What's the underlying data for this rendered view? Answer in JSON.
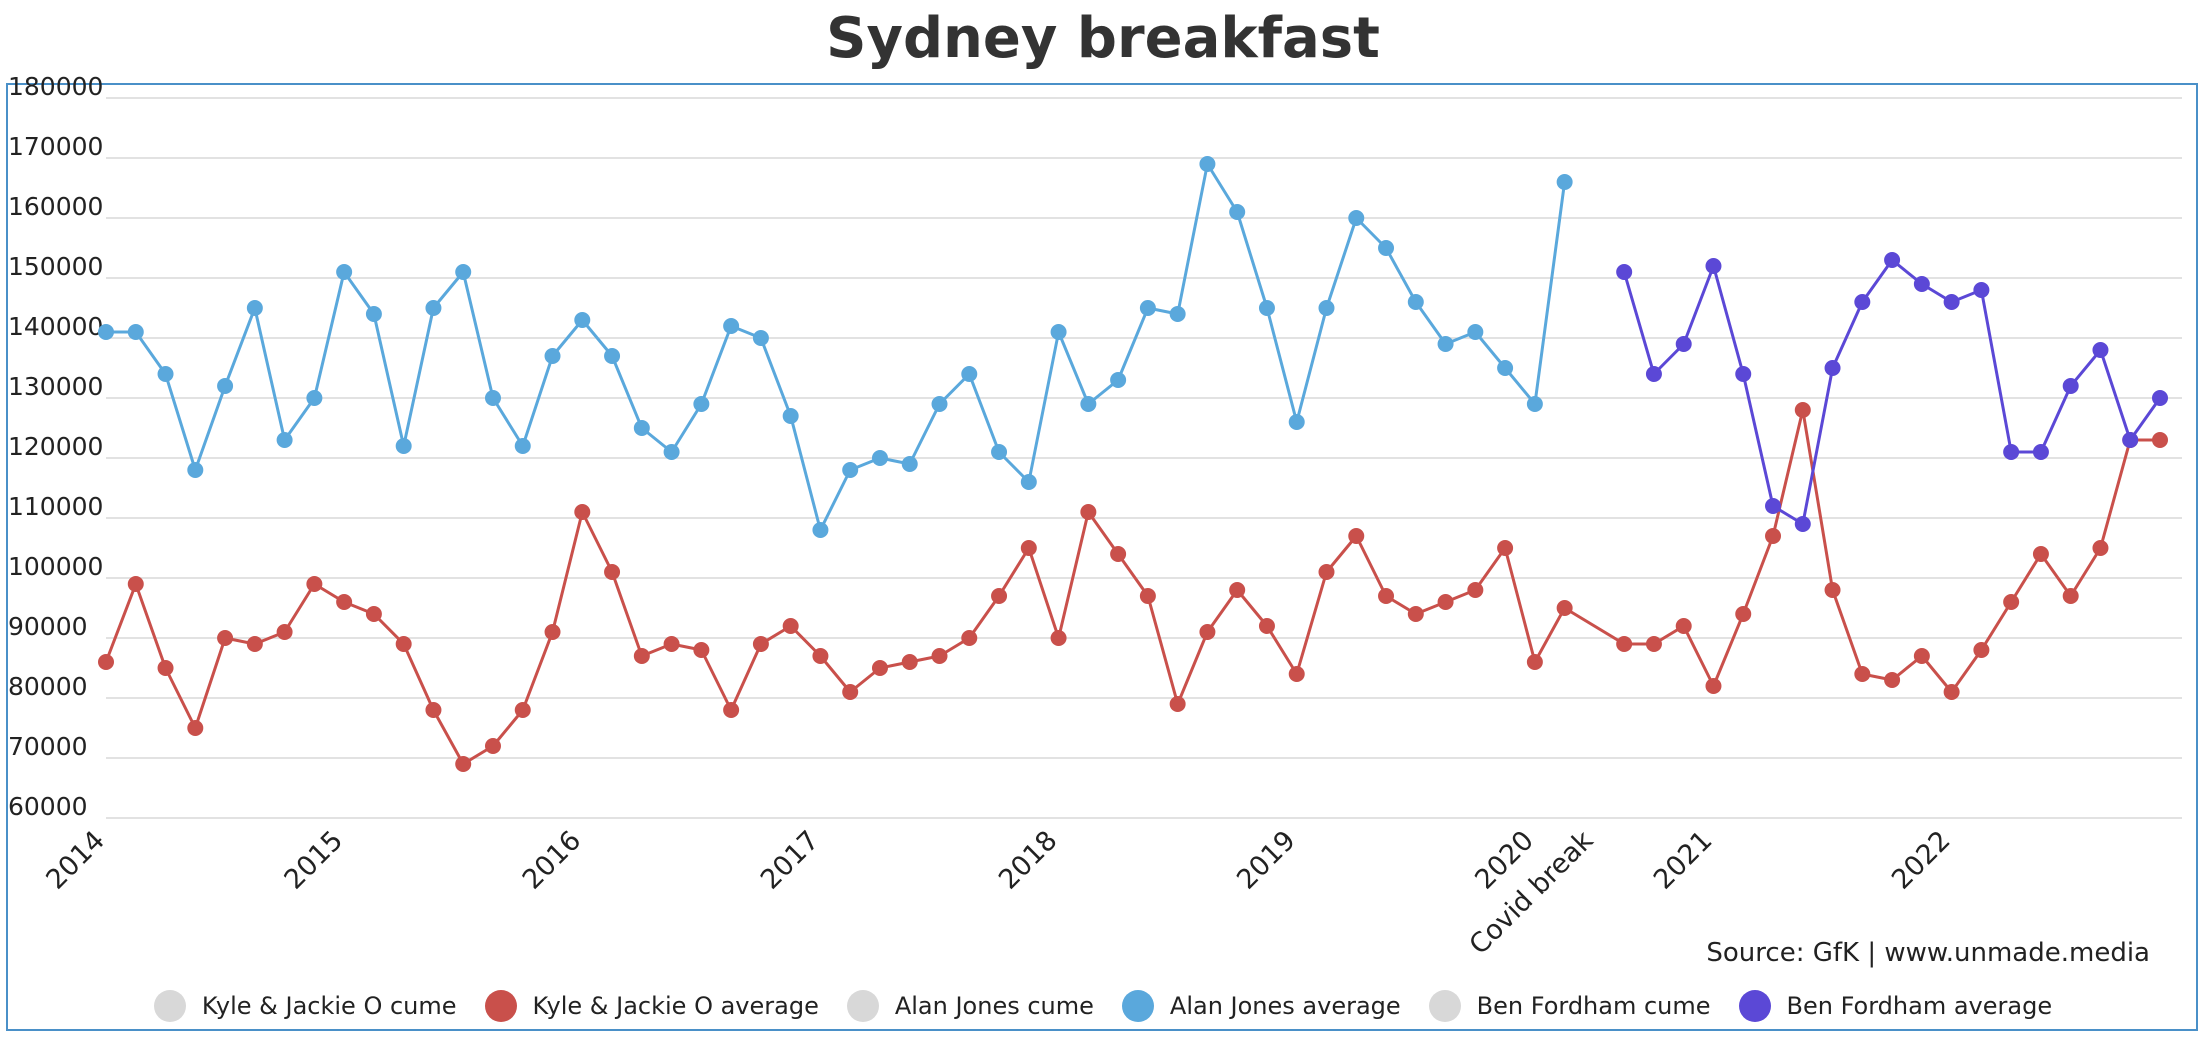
{
  "chart_data": {
    "type": "line",
    "title": "Sydney breakfast",
    "source": "Source: GfK | www.unmade.media",
    "ylim": [
      60000,
      180000
    ],
    "yticks": [
      60000,
      70000,
      80000,
      90000,
      100000,
      110000,
      120000,
      130000,
      140000,
      150000,
      160000,
      170000,
      180000
    ],
    "xtick_labels": [
      "2014",
      "2015",
      "2016",
      "2017",
      "2018",
      "2019",
      "2020",
      "Covid break",
      "2021",
      "2022"
    ],
    "xtick_index": [
      0,
      8,
      16,
      24,
      32,
      40,
      48,
      50,
      54,
      62
    ],
    "grid": true,
    "legend_position": "bottom",
    "series": [
      {
        "name": "Kyle & Jackie O cume",
        "color": "#d8d8d8",
        "values": []
      },
      {
        "name": "Kyle & Jackie O average",
        "color": "#c9504b",
        "values": [
          86000,
          99000,
          85000,
          75000,
          90000,
          89000,
          91000,
          99000,
          96000,
          94000,
          89000,
          78000,
          69000,
          72000,
          78000,
          91000,
          111000,
          101000,
          87000,
          89000,
          88000,
          78000,
          89000,
          92000,
          87000,
          81000,
          85000,
          86000,
          87000,
          90000,
          97000,
          105000,
          90000,
          111000,
          104000,
          97000,
          79000,
          91000,
          98000,
          92000,
          84000,
          101000,
          107000,
          97000,
          94000,
          96000,
          98000,
          105000,
          86000,
          95000,
          null,
          89000,
          89000,
          92000,
          82000,
          94000,
          107000,
          128000,
          98000,
          84000,
          83000,
          87000,
          81000,
          88000,
          96000,
          104000,
          97000,
          105000,
          123000,
          123000
        ]
      },
      {
        "name": "Alan Jones cume",
        "color": "#d8d8d8",
        "values": []
      },
      {
        "name": "Alan Jones average",
        "color": "#5aa8dc",
        "values": [
          141000,
          141000,
          134000,
          118000,
          132000,
          145000,
          123000,
          130000,
          151000,
          144000,
          122000,
          145000,
          151000,
          130000,
          122000,
          137000,
          143000,
          137000,
          125000,
          121000,
          129000,
          142000,
          140000,
          127000,
          108000,
          118000,
          120000,
          119000,
          129000,
          134000,
          121000,
          116000,
          141000,
          129000,
          133000,
          145000,
          144000,
          169000,
          161000,
          145000,
          126000,
          145000,
          160000,
          155000,
          146000,
          139000,
          141000,
          135000,
          129000,
          166000
        ]
      },
      {
        "name": "Ben Fordham cume",
        "color": "#d8d8d8",
        "values": []
      },
      {
        "name": "Ben Fordham average",
        "color": "#5b48d6",
        "values": [
          null,
          null,
          null,
          null,
          null,
          null,
          null,
          null,
          null,
          null,
          null,
          null,
          null,
          null,
          null,
          null,
          null,
          null,
          null,
          null,
          null,
          null,
          null,
          null,
          null,
          null,
          null,
          null,
          null,
          null,
          null,
          null,
          null,
          null,
          null,
          null,
          null,
          null,
          null,
          null,
          null,
          null,
          null,
          null,
          null,
          null,
          null,
          null,
          null,
          null,
          null,
          151000,
          134000,
          139000,
          152000,
          134000,
          112000,
          109000,
          135000,
          146000,
          153000,
          149000,
          146000,
          148000,
          121000,
          121000,
          132000,
          138000,
          123000,
          130000
        ]
      }
    ]
  }
}
